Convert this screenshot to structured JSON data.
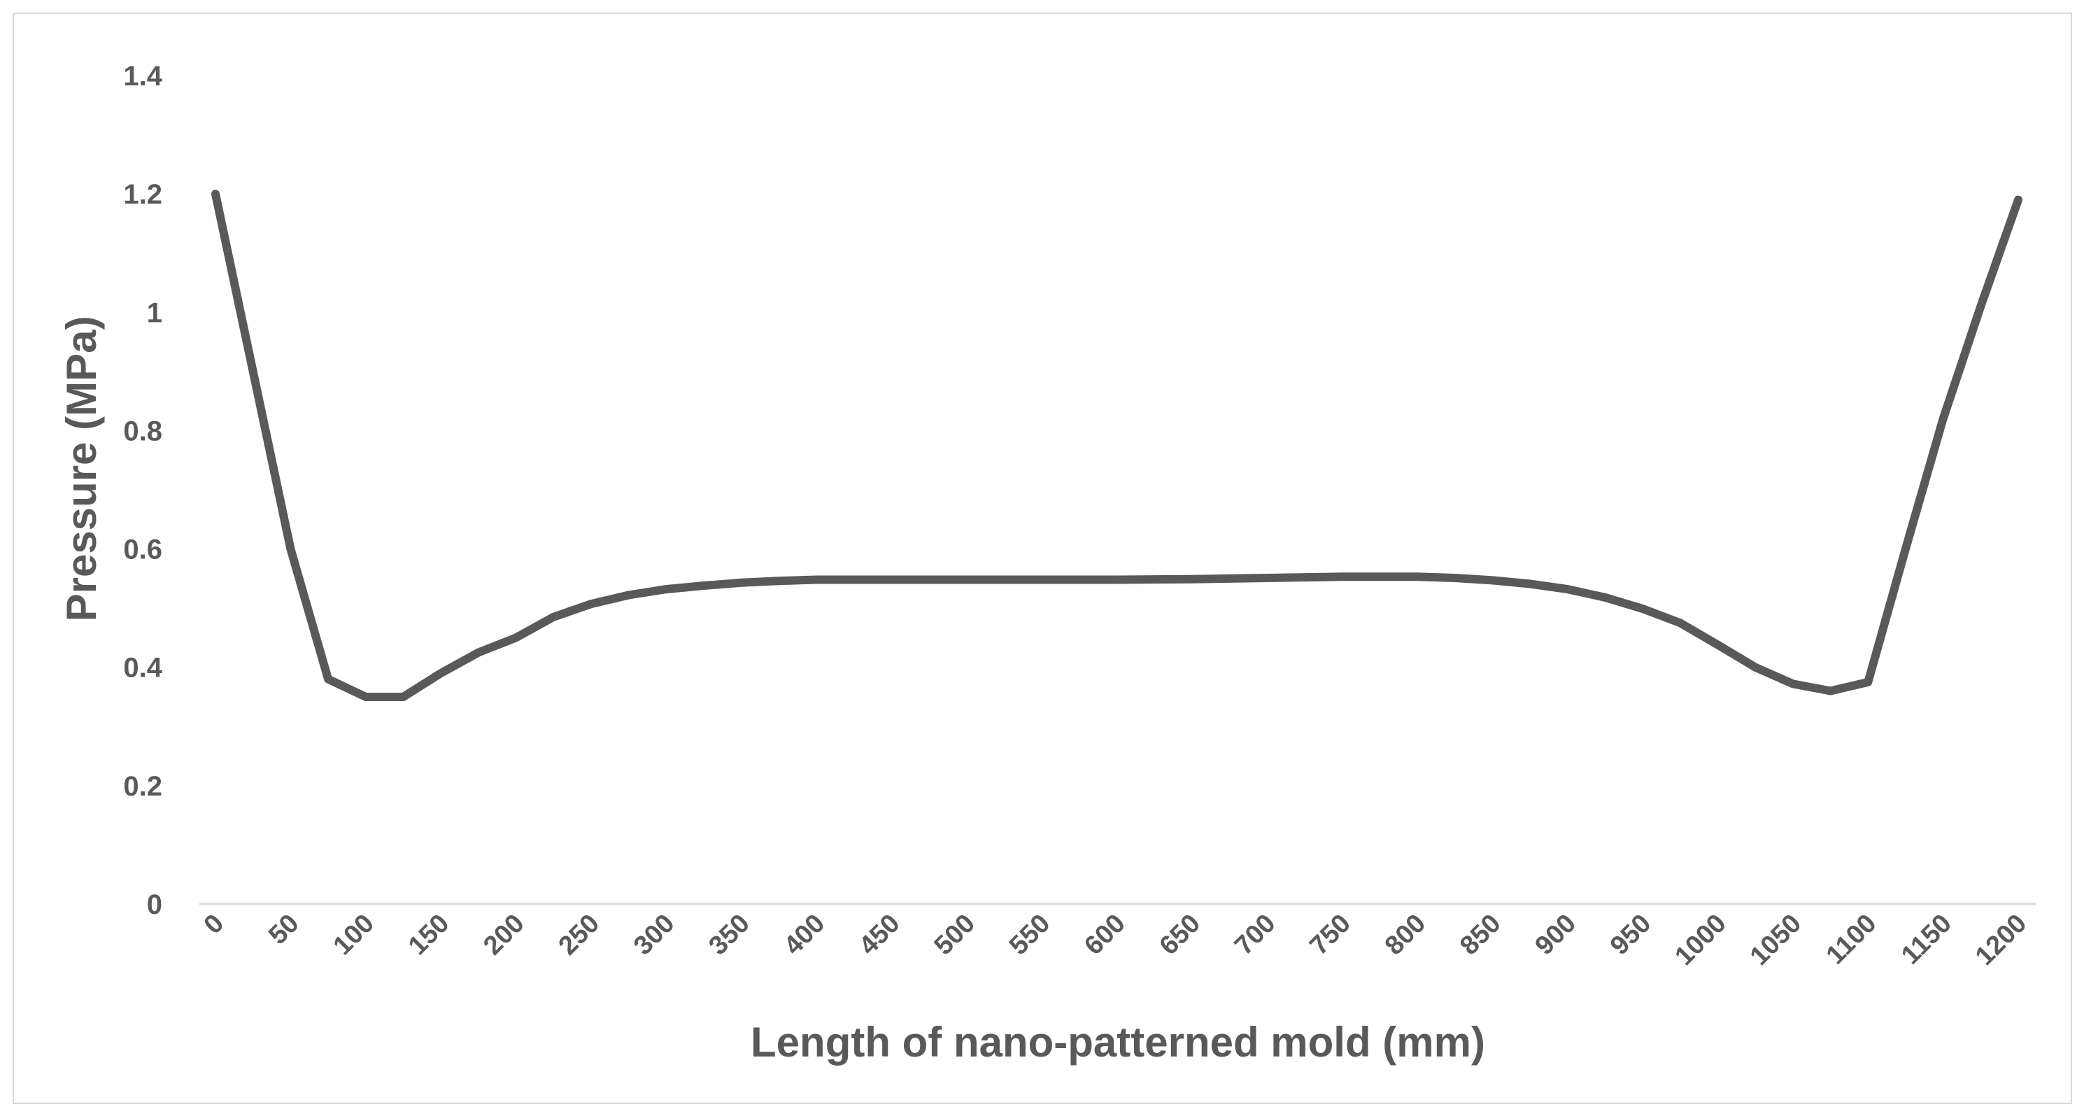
{
  "chart_data": {
    "type": "line",
    "title": "",
    "xlabel": "Length of nano-patterned mold (mm)",
    "ylabel": "Pressure (MPa)",
    "xlim": [
      0,
      1200
    ],
    "ylim": [
      0,
      1.4
    ],
    "y_ticks": [
      "0",
      "0.2",
      "0.4",
      "0.6",
      "0.8",
      "1",
      "1.2",
      "1.4"
    ],
    "x_ticks": [
      "0",
      "50",
      "100",
      "150",
      "200",
      "250",
      "300",
      "350",
      "400",
      "450",
      "500",
      "550",
      "600",
      "650",
      "700",
      "750",
      "800",
      "850",
      "900",
      "950",
      "1000",
      "1050",
      "1100",
      "1150",
      "1200"
    ],
    "grid": false,
    "legend": "none",
    "line_color": "#595959",
    "series": [
      {
        "x": [
          0,
          25,
          50,
          75,
          100,
          125,
          150,
          175,
          200,
          225,
          250,
          275,
          300,
          325,
          350,
          375,
          400,
          450,
          500,
          550,
          600,
          650,
          700,
          750,
          800,
          825,
          850,
          875,
          900,
          925,
          950,
          975,
          1000,
          1025,
          1050,
          1075,
          1100,
          1125,
          1150,
          1175,
          1200
        ],
        "values": [
          1.2,
          0.9,
          0.6,
          0.38,
          0.35,
          0.35,
          0.39,
          0.425,
          0.45,
          0.485,
          0.507,
          0.522,
          0.532,
          0.538,
          0.543,
          0.546,
          0.548,
          0.548,
          0.548,
          0.548,
          0.548,
          0.549,
          0.551,
          0.553,
          0.553,
          0.551,
          0.547,
          0.541,
          0.532,
          0.518,
          0.499,
          0.475,
          0.438,
          0.4,
          0.372,
          0.36,
          0.375,
          0.6,
          0.82,
          1.01,
          1.19
        ]
      }
    ]
  }
}
